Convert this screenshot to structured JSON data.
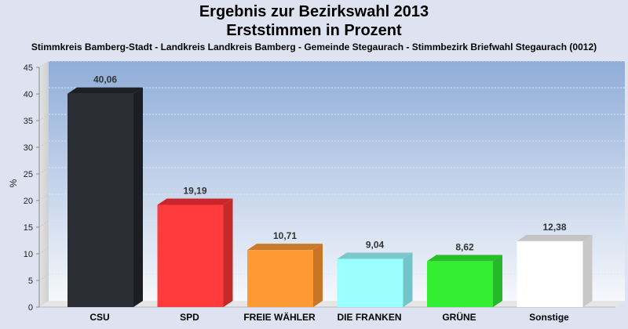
{
  "chart_data": {
    "type": "bar",
    "title_line1": "Ergebnis zur Bezirkswahl 2013",
    "title_line2": "Erststimmen in Prozent",
    "subtitle": "Stimmkreis Bamberg-Stadt - Landkreis Landkreis Bamberg - Gemeinde Stegaurach - Stimmbezirk Briefwahl Stegaurach (0012)",
    "ylabel": "%",
    "ylim": [
      0,
      45
    ],
    "yticks": [
      0,
      5,
      10,
      15,
      20,
      25,
      30,
      35,
      40,
      45
    ],
    "grid": true,
    "categories": [
      "CSU",
      "SPD",
      "FREIE WÄHLER",
      "DIE FRANKEN",
      "GRÜNE",
      "Sonstige"
    ],
    "values": [
      40.06,
      19.19,
      10.71,
      9.04,
      8.62,
      12.38
    ],
    "value_labels": [
      "40,06",
      "19,19",
      "10,71",
      "9,04",
      "8,62",
      "12,38"
    ],
    "colors": [
      "#2b2d35",
      "#ff3b3b",
      "#ff9933",
      "#99ffff",
      "#33ee33",
      "#ffffff"
    ],
    "side_colors": [
      "#1c1e24",
      "#c42a2a",
      "#c97526",
      "#73c4c8",
      "#26b826",
      "#c8c8c8"
    ],
    "top_colors": [
      "#1e2026",
      "#c8262b",
      "#c87b2b",
      "#7cc9cb",
      "#27be27",
      "#c4c4c4"
    ]
  }
}
